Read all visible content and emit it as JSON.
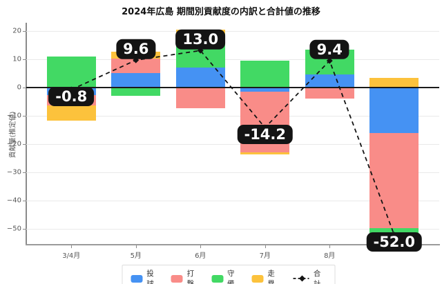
{
  "title": "2024年広島 期間別貢献度の内訳と合計値の推移",
  "chart_data": {
    "type": "bar",
    "stacked": true,
    "categories": [
      "3/4月",
      "5月",
      "6月",
      "7月",
      "8月",
      ""
    ],
    "series": [
      {
        "name": "投球",
        "color": "#4592F3",
        "values": [
          -2.7,
          5.0,
          6.9,
          -1.5,
          4.6,
          -16.1
        ]
      },
      {
        "name": "打撃",
        "color": "#F98C88",
        "values": [
          -3.6,
          5.2,
          -7.4,
          -21.4,
          -3.9,
          -33.6
        ]
      },
      {
        "name": "守備",
        "color": "#42D964",
        "values": [
          11.0,
          -3.1,
          12.1,
          9.4,
          8.7,
          -5.7
        ]
      },
      {
        "name": "走塁",
        "color": "#FCC23C",
        "values": [
          -5.5,
          2.5,
          1.4,
          -0.7,
          0.0,
          3.4
        ]
      }
    ],
    "line_series": {
      "name": "合計",
      "color": "#141414",
      "marker": "diamond",
      "dash": true,
      "values": [
        -0.8,
        9.6,
        13.0,
        -14.2,
        9.4,
        -52.0
      ]
    },
    "annotations": [
      "-0.8",
      "9.6",
      "13.0",
      "-14.2",
      "9.4",
      "-52.0"
    ],
    "ylabel": "貢献量(推定値)",
    "yticks": [
      20,
      10,
      0,
      -10,
      -20,
      -30,
      -40,
      -50
    ],
    "ytick_labels": [
      "20",
      "10",
      "0",
      "−10",
      "−20",
      "−30",
      "−40",
      "−50"
    ],
    "ylim": [
      -55.5,
      22.8
    ],
    "grid": true,
    "zero_line": true,
    "legend_position": "bottom-center"
  }
}
